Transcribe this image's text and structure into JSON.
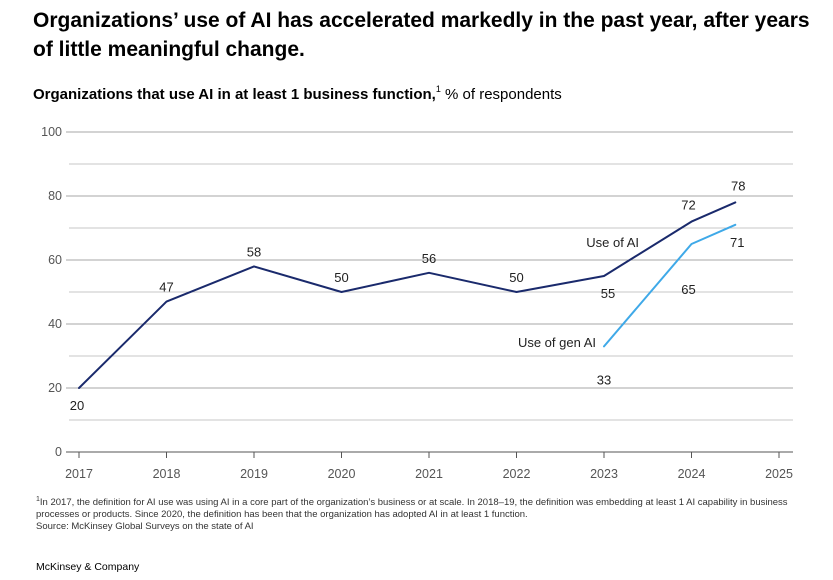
{
  "headline": "Organizations’ use of AI has accelerated markedly in the past year, after years of little meaningful change.",
  "subtitle": {
    "bold": "Organizations that use AI in at least 1 business function,",
    "footnote_marker": "1",
    "rest": " % of respondents"
  },
  "chart_data": {
    "type": "line",
    "x_ticks": [
      "2017",
      "2018",
      "2019",
      "2020",
      "2021",
      "2022",
      "2023",
      "2024",
      "2025"
    ],
    "y_ticks": [
      "0",
      "20",
      "40",
      "60",
      "80",
      "100"
    ],
    "ylim": [
      0,
      100
    ],
    "xlim": [
      2017,
      2025
    ],
    "grid": true,
    "series": [
      {
        "name": "Use of AI",
        "color": "#1a2a6c",
        "points": [
          {
            "x": 2017,
            "y": 20,
            "label": "20"
          },
          {
            "x": 2018,
            "y": 47,
            "label": "47"
          },
          {
            "x": 2019,
            "y": 58,
            "label": "58"
          },
          {
            "x": 2020,
            "y": 50,
            "label": "50"
          },
          {
            "x": 2021,
            "y": 56,
            "label": "56"
          },
          {
            "x": 2022,
            "y": 50,
            "label": "50"
          },
          {
            "x": 2023,
            "y": 55,
            "label": "55"
          },
          {
            "x": 2024,
            "y": 72,
            "label": "72"
          },
          {
            "x": 2024.5,
            "y": 78,
            "label": "78"
          }
        ]
      },
      {
        "name": "Use of gen AI",
        "color": "#3fa9e8",
        "points": [
          {
            "x": 2023,
            "y": 33,
            "label": "33"
          },
          {
            "x": 2024,
            "y": 65,
            "label": "65"
          },
          {
            "x": 2024.5,
            "y": 71,
            "label": "71"
          }
        ]
      }
    ]
  },
  "footnote": {
    "marker": "1",
    "text": "In 2017, the definition for AI use was using AI in a core part of the organization’s business or at scale. In 2018–19, the definition was embedding at least 1 AI capability in business processes or products. Since 2020, the definition has been that the organization has adopted AI in at least 1 function.",
    "source": "Source: McKinsey Global Surveys on the state of AI"
  },
  "brand": "McKinsey & Company"
}
